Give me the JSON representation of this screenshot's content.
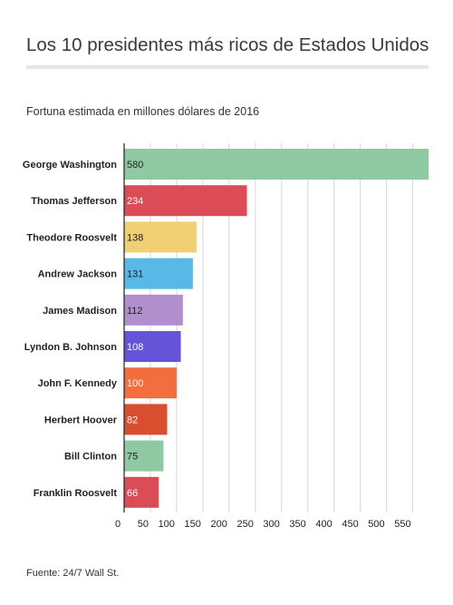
{
  "header": {
    "title": "Los 10 presidentes más ricos de Estados Unidos",
    "subtitle": "Fortuna estimada en millones dólares de 2016"
  },
  "footer": {
    "source": "Fuente: 24/7 Wall St."
  },
  "chart_data": {
    "type": "bar",
    "orientation": "horizontal",
    "categories": [
      "George Washington",
      "Thomas Jefferson",
      "Theodore Roosvelt",
      "Andrew Jackson",
      "James Madison",
      "Lyndon B. Johnson",
      "John F. Kennedy",
      "Herbert Hoover",
      "Bill Clinton",
      "Franklin Roosvelt"
    ],
    "values": [
      580,
      234,
      138,
      131,
      112,
      108,
      100,
      82,
      75,
      66
    ],
    "value_labels": [
      "580",
      "234",
      "138",
      "131",
      "112",
      "108",
      "100",
      "82",
      "75",
      "66"
    ],
    "colors": [
      "#8ec9a4",
      "#dc4c56",
      "#f1cf73",
      "#58b9e6",
      "#b08fcc",
      "#6654d8",
      "#f26e3e",
      "#d84e2f",
      "#8ec9a4",
      "#dc4c56"
    ],
    "xticks": [
      0,
      50,
      100,
      150,
      200,
      250,
      300,
      350,
      400,
      450,
      500,
      550
    ],
    "xlim": [
      0,
      580
    ],
    "grid": true,
    "legend": "none",
    "title": "Los 10 presidentes más ricos de Estados Unidos",
    "xlabel": "",
    "ylabel": ""
  }
}
